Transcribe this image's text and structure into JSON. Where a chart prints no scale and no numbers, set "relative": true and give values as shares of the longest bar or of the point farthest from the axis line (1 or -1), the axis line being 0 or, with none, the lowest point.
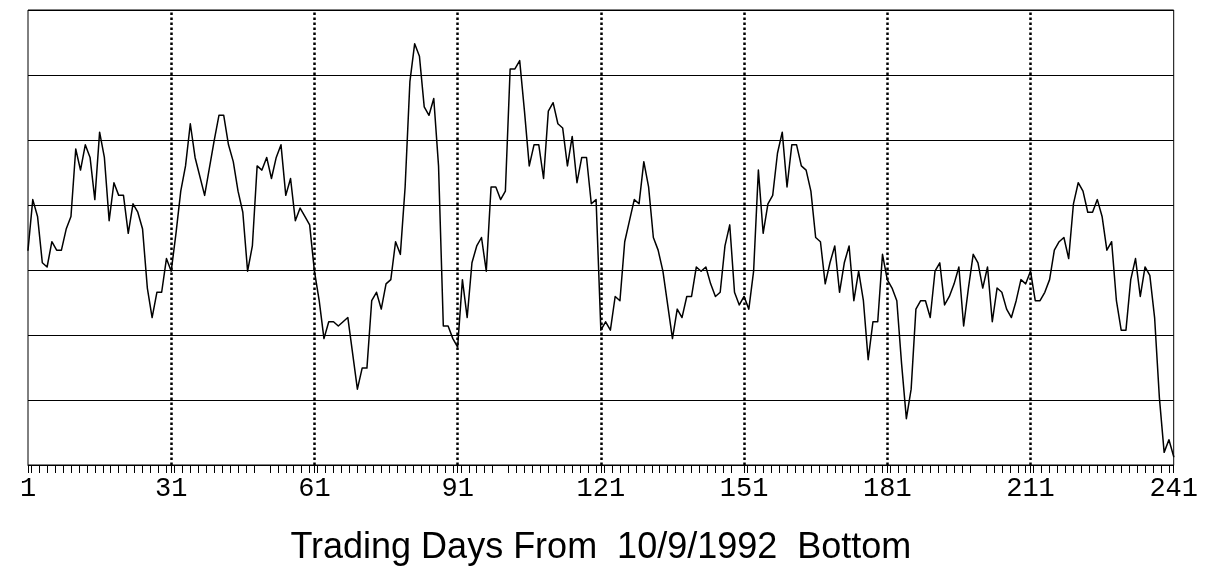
{
  "chart_data": {
    "type": "line",
    "xlabel": "Trading Days From  10/9/1992  Bottom",
    "relative": true,
    "xlim": [
      1,
      241
    ],
    "xticks": [
      1,
      31,
      61,
      91,
      121,
      151,
      181,
      211,
      241
    ],
    "grid": "y",
    "marker": "none",
    "line_style": "solid",
    "ref_lines": [
      {
        "axis": "x",
        "value": 31,
        "line_style": "dotted"
      },
      {
        "axis": "x",
        "value": 61,
        "line_style": "dotted"
      },
      {
        "axis": "x",
        "value": 91,
        "line_style": "dotted"
      },
      {
        "axis": "x",
        "value": 121,
        "line_style": "dotted"
      },
      {
        "axis": "x",
        "value": 151,
        "line_style": "dotted"
      },
      {
        "axis": "x",
        "value": 181,
        "line_style": "dotted"
      },
      {
        "axis": "x",
        "value": 211,
        "line_style": "dotted"
      }
    ],
    "series": [
      {
        "color": "#000000",
        "x": [
          1,
          2,
          3,
          4,
          5,
          6,
          7,
          8,
          9,
          10,
          11,
          12,
          13,
          14,
          15,
          16,
          17,
          18,
          19,
          20,
          21,
          22,
          23,
          24,
          25,
          26,
          27,
          28,
          29,
          30,
          31,
          32,
          33,
          34,
          35,
          36,
          38,
          40,
          41,
          42,
          43,
          44,
          45,
          46,
          47,
          48,
          49,
          50,
          51,
          52,
          53,
          54,
          55,
          56,
          57,
          58,
          59,
          60,
          61,
          62,
          63,
          64,
          65,
          66,
          67,
          68,
          70,
          71,
          72,
          73,
          74,
          75,
          76,
          77,
          78,
          79,
          80,
          81,
          82,
          83,
          84,
          85,
          86,
          87,
          88,
          89,
          90,
          91,
          92,
          93,
          94,
          95,
          96,
          97,
          98,
          99,
          100,
          101,
          102,
          103,
          104,
          105,
          106,
          107,
          108,
          109,
          110,
          111,
          112,
          113,
          114,
          115,
          116,
          117,
          118,
          119,
          120,
          121,
          122,
          123,
          124,
          125,
          126,
          127,
          128,
          129,
          130,
          131,
          132,
          133,
          134,
          136,
          137,
          138,
          139,
          140,
          141,
          142,
          143,
          144,
          145,
          146,
          147,
          148,
          149,
          150,
          151,
          152,
          153,
          154,
          155,
          156,
          157,
          158,
          159,
          160,
          161,
          162,
          163,
          164,
          165,
          166,
          167,
          168,
          169,
          170,
          171,
          172,
          173,
          174,
          175,
          176,
          177,
          178,
          179,
          180,
          181,
          182,
          183,
          184,
          185,
          186,
          187,
          188,
          189,
          190,
          191,
          192,
          193,
          194,
          195,
          196,
          197,
          198,
          199,
          200,
          201,
          202,
          203,
          204,
          205,
          206,
          207,
          208,
          209,
          210,
          211,
          212,
          213,
          214,
          215,
          216,
          217,
          218,
          219,
          220,
          221,
          222,
          223,
          224,
          225,
          226,
          227,
          228,
          229,
          230,
          231,
          232,
          233,
          234,
          235,
          236,
          237,
          238,
          239,
          240,
          241
        ],
        "values": [
          0.51,
          0.63,
          0.59,
          0.48,
          0.47,
          0.53,
          0.51,
          0.51,
          0.56,
          0.59,
          0.75,
          0.7,
          0.76,
          0.73,
          0.63,
          0.79,
          0.73,
          0.58,
          0.67,
          0.64,
          0.64,
          0.55,
          0.62,
          0.6,
          0.56,
          0.42,
          0.35,
          0.41,
          0.41,
          0.49,
          0.46,
          0.55,
          0.65,
          0.71,
          0.81,
          0.73,
          0.64,
          0.77,
          0.83,
          0.83,
          0.76,
          0.72,
          0.65,
          0.6,
          0.46,
          0.52,
          0.71,
          0.7,
          0.73,
          0.68,
          0.73,
          0.76,
          0.64,
          0.68,
          0.58,
          0.61,
          0.59,
          0.57,
          0.46,
          0.39,
          0.3,
          0.34,
          0.34,
          0.33,
          0.34,
          0.35,
          0.18,
          0.23,
          0.23,
          0.39,
          0.41,
          0.37,
          0.43,
          0.44,
          0.53,
          0.5,
          0.66,
          0.91,
          1,
          0.97,
          0.85,
          0.83,
          0.87,
          0.71,
          0.33,
          0.33,
          0.3,
          0.28,
          0.44,
          0.35,
          0.48,
          0.52,
          0.54,
          0.46,
          0.66,
          0.66,
          0.63,
          0.65,
          0.94,
          0.94,
          0.96,
          0.84,
          0.71,
          0.76,
          0.76,
          0.68,
          0.84,
          0.86,
          0.81,
          0.8,
          0.71,
          0.78,
          0.67,
          0.73,
          0.73,
          0.62,
          0.63,
          0.32,
          0.34,
          0.32,
          0.4,
          0.39,
          0.53,
          0.58,
          0.63,
          0.62,
          0.72,
          0.66,
          0.54,
          0.51,
          0.46,
          0.3,
          0.37,
          0.35,
          0.4,
          0.4,
          0.47,
          0.46,
          0.47,
          0.43,
          0.4,
          0.41,
          0.52,
          0.57,
          0.41,
          0.38,
          0.4,
          0.37,
          0.46,
          0.7,
          0.55,
          0.62,
          0.64,
          0.74,
          0.79,
          0.66,
          0.76,
          0.76,
          0.71,
          0.7,
          0.65,
          0.54,
          0.53,
          0.43,
          0.48,
          0.52,
          0.41,
          0.48,
          0.52,
          0.39,
          0.46,
          0.39,
          0.25,
          0.34,
          0.34,
          0.5,
          0.44,
          0.42,
          0.39,
          0.24,
          0.11,
          0.18,
          0.37,
          0.39,
          0.39,
          0.35,
          0.46,
          0.48,
          0.38,
          0.4,
          0.43,
          0.47,
          0.33,
          0.42,
          0.5,
          0.48,
          0.42,
          0.47,
          0.34,
          0.42,
          0.41,
          0.37,
          0.35,
          0.39,
          0.44,
          0.43,
          0.46,
          0.39,
          0.39,
          0.41,
          0.44,
          0.51,
          0.53,
          0.54,
          0.49,
          0.62,
          0.67,
          0.65,
          0.6,
          0.6,
          0.63,
          0.59,
          0.51,
          0.53,
          0.39,
          0.32,
          0.32,
          0.44,
          0.49,
          0.4,
          0.47,
          0.45,
          0.35,
          0.16,
          0.03,
          0.06,
          0.02
        ]
      }
    ]
  }
}
